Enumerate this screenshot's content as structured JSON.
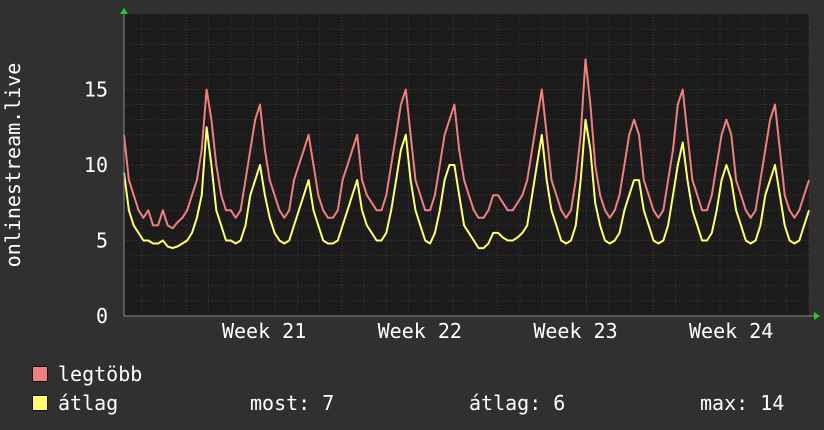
{
  "chart_data": {
    "type": "line",
    "ylabel": "onlinestream.live",
    "ylim": [
      0,
      20
    ],
    "yticks": [
      0,
      5,
      10,
      15
    ],
    "x_week_labels": [
      "Week 21",
      "Week 22",
      "Week 23",
      "Week 24"
    ],
    "x_range_weeks": [
      20.6,
      25.0
    ],
    "colors": {
      "background": "#303030",
      "plot": "#1b1b1b",
      "grid": "#3a3a3a",
      "majorgrid": "#6a2a2a",
      "axis_arrow": "#22cc22"
    },
    "series": [
      {
        "name": "legtöbb",
        "color": "#f07f7f",
        "values": [
          12,
          9,
          8,
          7,
          6.5,
          7,
          6,
          6,
          7,
          6,
          5.8,
          6.2,
          6.5,
          7,
          8,
          9,
          11,
          15,
          13,
          10,
          8,
          7,
          7,
          6.5,
          7,
          9,
          11,
          13,
          14,
          11,
          9,
          8,
          7,
          6.5,
          7,
          9,
          10,
          11,
          12,
          10,
          8,
          7,
          6.5,
          6.5,
          7,
          9,
          10,
          11,
          12,
          9,
          8,
          7.5,
          7,
          7,
          8,
          10,
          12,
          14,
          15,
          12,
          9,
          8,
          7,
          7,
          8,
          10,
          12,
          13,
          14,
          11,
          9,
          8,
          7,
          6.5,
          6.5,
          7,
          8,
          8,
          7.5,
          7,
          7,
          7.5,
          8,
          9,
          11,
          13,
          15,
          12,
          9,
          8,
          7,
          6.5,
          7,
          9,
          12,
          17,
          14,
          10,
          8,
          7,
          6.5,
          7,
          8,
          10,
          12,
          13,
          12,
          9,
          8,
          7,
          6.5,
          7,
          9,
          11,
          14,
          15,
          12,
          9,
          8,
          7,
          7,
          8,
          10,
          12,
          13,
          12,
          9,
          8,
          7,
          6.5,
          7,
          9,
          11,
          13,
          14,
          11,
          8,
          7,
          6.5,
          7,
          8,
          9
        ]
      },
      {
        "name": "átlag",
        "color": "#ffff70",
        "values": [
          9.5,
          7,
          6,
          5.5,
          5,
          5,
          4.8,
          4.8,
          5,
          4.6,
          4.5,
          4.6,
          4.8,
          5,
          5.5,
          6.5,
          8,
          12.5,
          10,
          7,
          6,
          5,
          5,
          4.8,
          5,
          6,
          8,
          9,
          10,
          8,
          6.5,
          5.5,
          5,
          4.8,
          5,
          6,
          7,
          8,
          9,
          7,
          6,
          5,
          4.8,
          4.8,
          5,
          6,
          7,
          8,
          9,
          7,
          6,
          5.5,
          5,
          5,
          5.5,
          7,
          9,
          11,
          12,
          9,
          7,
          6,
          5,
          4.8,
          5.5,
          7,
          9,
          10,
          10,
          8,
          6,
          5.5,
          5,
          4.5,
          4.5,
          4.8,
          5.5,
          5.5,
          5.2,
          5,
          5,
          5.2,
          5.5,
          6,
          8,
          10,
          12,
          9,
          7,
          6,
          5,
          4.8,
          5,
          6,
          9,
          13,
          11,
          7.5,
          6,
          5,
          4.8,
          5,
          5.5,
          7,
          8,
          9,
          9,
          7,
          6,
          5,
          4.8,
          5,
          6,
          8,
          10,
          11.5,
          9,
          7,
          6,
          5,
          5,
          5.5,
          7,
          9,
          10,
          9,
          7,
          6,
          5,
          4.8,
          5,
          6,
          8,
          9,
          10,
          8,
          6,
          5,
          4.8,
          5,
          6,
          7
        ]
      }
    ]
  },
  "legend": {
    "max_label": "legtöbb",
    "avg_label": "átlag",
    "stats": {
      "now": "most: 7",
      "avg": "átlag: 6",
      "max": "max: 14"
    }
  }
}
